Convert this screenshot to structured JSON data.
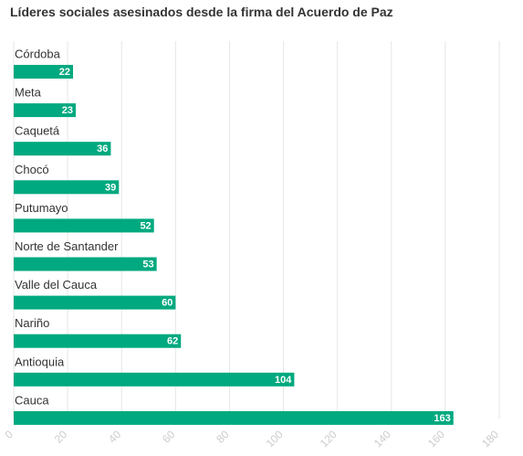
{
  "chart_data": {
    "type": "bar",
    "orientation": "horizontal",
    "title": "Líderes sociales asesinados desde la firma del Acuerdo de Paz",
    "categories": [
      "Córdoba",
      "Meta",
      "Caquetá",
      "Chocó",
      "Putumayo",
      "Norte de Santander",
      "Valle del Cauca",
      "Nariño",
      "Antioquia",
      "Cauca"
    ],
    "values": [
      22,
      23,
      36,
      39,
      52,
      53,
      60,
      62,
      104,
      163
    ],
    "xlim": [
      0,
      180
    ],
    "xticks": [
      0,
      20,
      40,
      60,
      80,
      100,
      120,
      140,
      160,
      180
    ],
    "xlabel": "",
    "ylabel": "",
    "grid": true,
    "data_labels": "inside-end",
    "legend": "none"
  },
  "colors": {
    "bar": "#00a97f",
    "bar_label": "#ffffff",
    "category_label": "#333333",
    "title": "#333333",
    "tick_label": "#cccccc",
    "grid": "#e6e6e6"
  }
}
